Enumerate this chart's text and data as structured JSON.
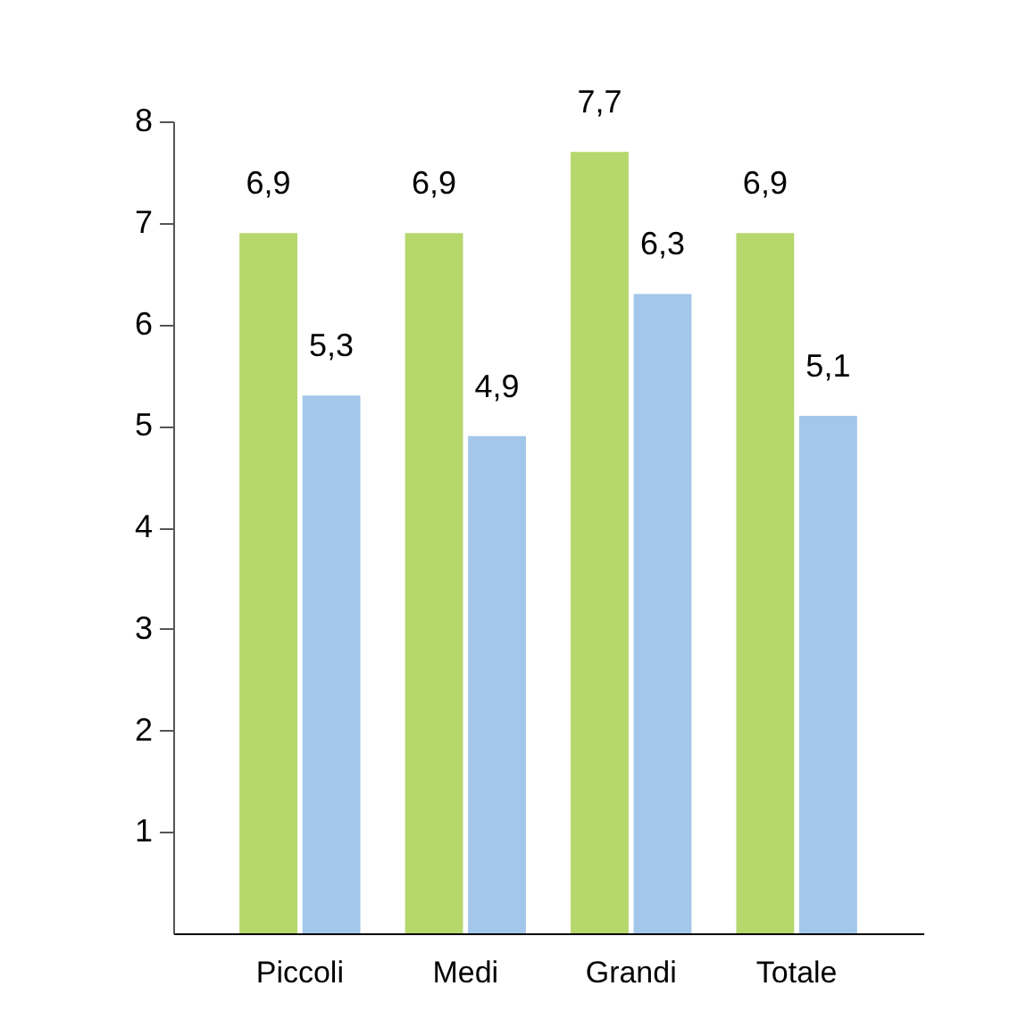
{
  "chart_data": {
    "type": "bar",
    "categories": [
      "Piccoli",
      "Medi",
      "Grandi",
      "Totale"
    ],
    "series": [
      {
        "color": "#b5d76c",
        "values": [
          6.9,
          6.9,
          7.7,
          6.9
        ],
        "value_labels": [
          "6,9",
          "6,9",
          "7,7",
          "6,9"
        ]
      },
      {
        "color": "#a3c7ea",
        "values": [
          5.3,
          4.9,
          6.3,
          5.1
        ],
        "value_labels": [
          "5,3",
          "4,9",
          "6,3",
          "5,1"
        ]
      }
    ],
    "ylim": [
      0,
      8
    ],
    "yticks": [
      1,
      2,
      3,
      4,
      5,
      6,
      7,
      8
    ]
  }
}
